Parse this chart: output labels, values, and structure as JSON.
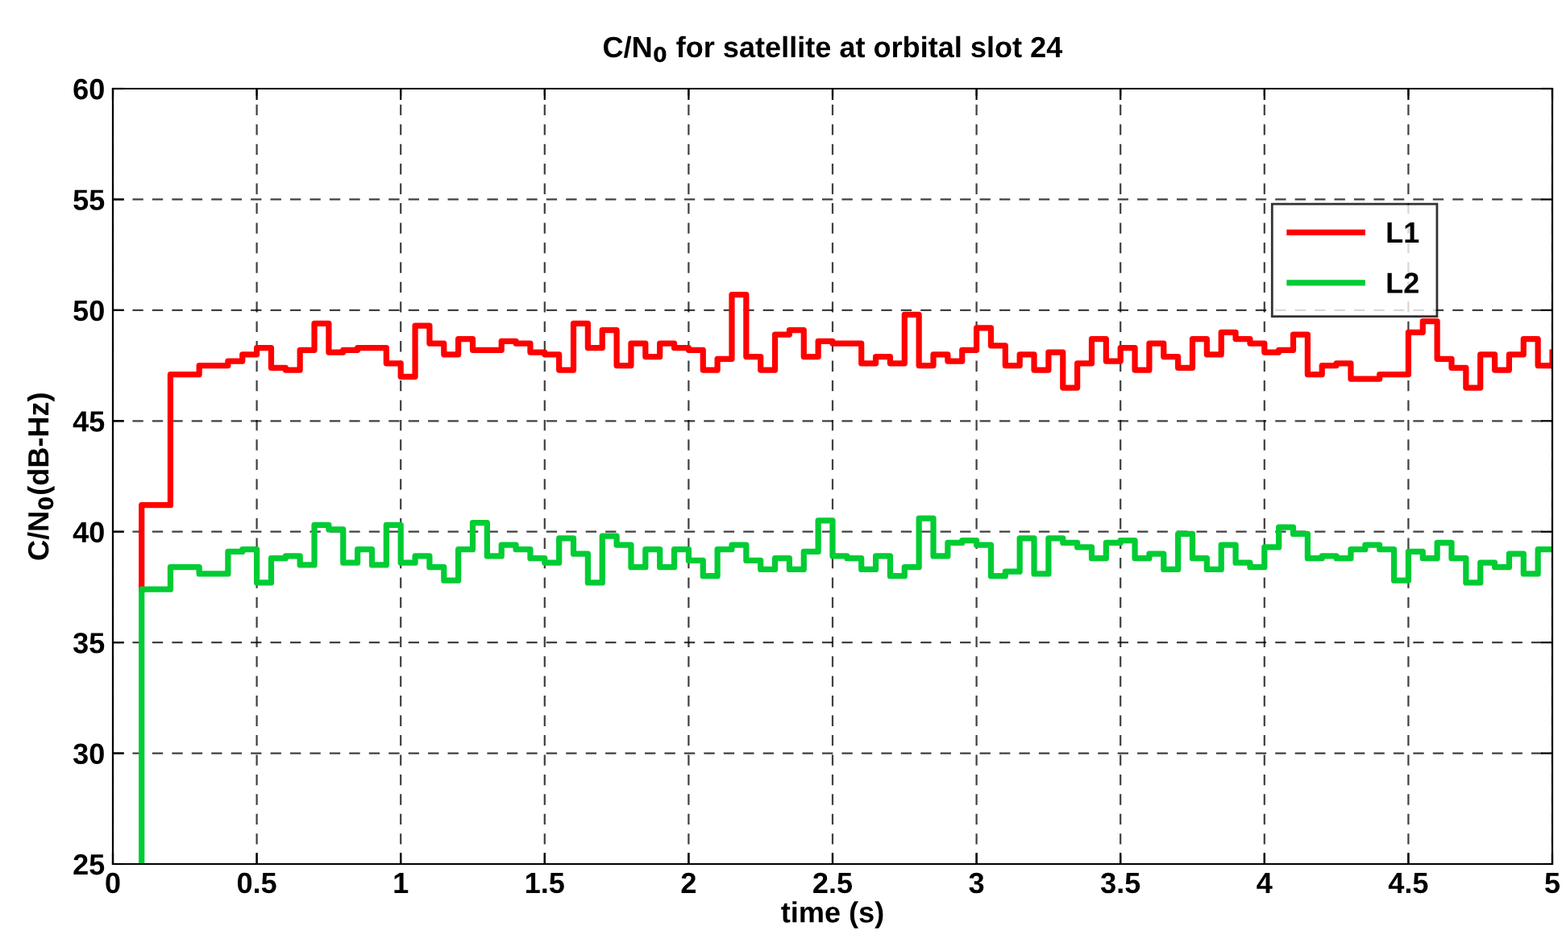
{
  "chart_data": {
    "type": "step",
    "title": "C/N$_{0}$ for satellite at orbital slot 24",
    "xlabel": "time (s)",
    "ylabel": "C/N$_{0}$(dB-Hz)",
    "x": [
      0.1,
      0.1,
      0.15,
      0.2,
      0.25,
      0.3,
      0.35,
      0.4,
      0.45,
      0.5,
      0.55,
      0.6,
      0.65,
      0.7,
      0.75,
      0.8,
      0.85,
      0.9,
      0.95,
      1.0,
      1.05,
      1.1,
      1.15,
      1.2,
      1.25,
      1.3,
      1.35,
      1.4,
      1.45,
      1.5,
      1.55,
      1.6,
      1.65,
      1.7,
      1.75,
      1.8,
      1.85,
      1.9,
      1.95,
      2.0,
      2.05,
      2.1,
      2.15,
      2.2,
      2.25,
      2.3,
      2.35,
      2.4,
      2.45,
      2.5,
      2.55,
      2.6,
      2.65,
      2.7,
      2.75,
      2.8,
      2.85,
      2.9,
      2.95,
      3.0,
      3.05,
      3.1,
      3.15,
      3.2,
      3.25,
      3.3,
      3.35,
      3.4,
      3.45,
      3.5,
      3.55,
      3.6,
      3.65,
      3.7,
      3.75,
      3.8,
      3.85,
      3.9,
      3.95,
      4.0,
      4.05,
      4.1,
      4.15,
      4.2,
      4.25,
      4.3,
      4.35,
      4.4,
      4.45,
      4.5,
      4.55,
      4.6,
      4.65,
      4.7,
      4.75,
      4.8,
      4.85,
      4.9,
      4.95,
      5.0
    ],
    "series": [
      {
        "name": "L1",
        "color": "#ff0000",
        "values": [
          37.4,
          41.2,
          41.2,
          47.1,
          47.1,
          47.5,
          47.5,
          47.7,
          48.0,
          48.3,
          47.4,
          47.3,
          48.2,
          49.4,
          48.1,
          48.2,
          48.3,
          48.3,
          47.6,
          47.0,
          49.3,
          48.5,
          48.0,
          48.7,
          48.2,
          48.2,
          48.6,
          48.5,
          48.1,
          48.0,
          47.3,
          49.4,
          48.3,
          49.1,
          47.5,
          48.5,
          47.9,
          48.5,
          48.3,
          48.2,
          47.3,
          47.8,
          50.7,
          47.9,
          47.3,
          48.9,
          49.1,
          47.9,
          48.6,
          48.5,
          48.5,
          47.6,
          47.9,
          47.6,
          49.8,
          47.5,
          48.0,
          47.7,
          48.2,
          49.2,
          48.4,
          47.5,
          48.0,
          47.3,
          48.1,
          46.5,
          47.6,
          48.7,
          47.7,
          48.3,
          47.3,
          48.5,
          47.9,
          47.4,
          48.7,
          48.0,
          49.0,
          48.7,
          48.5,
          48.1,
          48.2,
          48.9,
          47.1,
          47.5,
          47.6,
          46.9,
          46.9,
          47.1,
          47.1,
          49.0,
          49.5,
          47.8,
          47.4,
          46.5,
          48.0,
          47.3,
          48.0,
          48.7,
          47.5,
          48.1
        ]
      },
      {
        "name": "L2",
        "color": "#00cc33",
        "values": [
          25,
          37.4,
          37.4,
          38.4,
          38.4,
          38.1,
          38.1,
          39.1,
          39.2,
          37.7,
          38.8,
          38.9,
          38.5,
          40.3,
          40.1,
          38.6,
          39.2,
          38.5,
          40.3,
          38.6,
          38.9,
          38.4,
          37.8,
          39.2,
          40.4,
          38.9,
          39.4,
          39.2,
          38.8,
          38.6,
          39.7,
          39.0,
          37.7,
          39.8,
          39.4,
          38.4,
          39.2,
          38.4,
          39.2,
          38.7,
          38.0,
          39.2,
          39.4,
          38.7,
          38.3,
          38.8,
          38.3,
          39.1,
          40.5,
          38.9,
          38.8,
          38.3,
          38.9,
          38.0,
          38.4,
          40.6,
          38.9,
          39.5,
          39.6,
          39.4,
          38.0,
          38.2,
          39.7,
          38.1,
          39.7,
          39.5,
          39.3,
          38.8,
          39.5,
          39.6,
          38.8,
          39.0,
          38.3,
          39.9,
          38.8,
          38.3,
          39.4,
          38.6,
          38.4,
          39.3,
          40.2,
          39.9,
          38.8,
          38.9,
          38.8,
          39.2,
          39.4,
          39.2,
          37.8,
          39.1,
          38.8,
          39.5,
          38.8,
          37.7,
          38.6,
          38.4,
          39.0,
          38.1,
          39.2,
          39.2
        ]
      }
    ],
    "xlim": [
      0,
      5
    ],
    "xticks": [
      0,
      0.5,
      1,
      1.5,
      2,
      2.5,
      3,
      3.5,
      4,
      4.5,
      5
    ],
    "ylim": [
      25,
      60
    ],
    "yticks": [
      25,
      30,
      35,
      40,
      45,
      50,
      55,
      60
    ],
    "grid": true,
    "legend": "top right",
    "line_style": "solid",
    "marker": "none"
  }
}
